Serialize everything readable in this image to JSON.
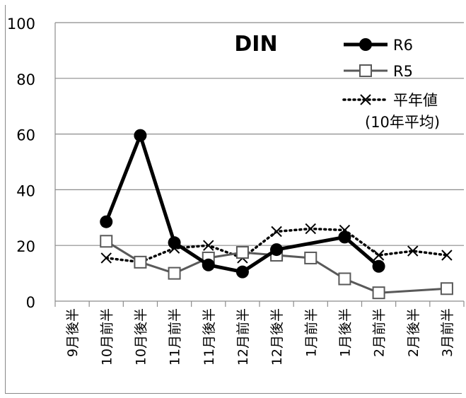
{
  "chart_data": {
    "type": "line",
    "title": "DIN",
    "xlabel": "",
    "ylabel": "",
    "ylim": [
      0,
      100
    ],
    "yticks": [
      "0",
      "20",
      "40",
      "60",
      "80",
      "100"
    ],
    "categories": [
      "9月後半",
      "10月前半",
      "10月後半",
      "11月前半",
      "11月後半",
      "12月前半",
      "12月後半",
      "1月前半",
      "1月後半",
      "2月前半",
      "2月後半",
      "3月前半"
    ],
    "grid": "horizontal",
    "legend_position": "top-right",
    "series": [
      {
        "name": "R6",
        "color": "#000000",
        "style": "solid-thick",
        "marker": "filled-circle",
        "values": [
          null,
          28.5,
          59.5,
          21,
          13,
          10.5,
          18.5,
          null,
          23,
          12.5,
          null,
          null
        ]
      },
      {
        "name": "R5",
        "color": "#595959",
        "style": "solid",
        "marker": "open-square",
        "values": [
          null,
          21.5,
          14,
          10,
          15.5,
          17.5,
          16.5,
          15.5,
          8,
          3,
          null,
          4.5
        ]
      },
      {
        "name": "平年値",
        "name_line2": "(10年平均)",
        "color": "#000000",
        "style": "dotted",
        "marker": "x",
        "values": [
          null,
          15.5,
          14,
          19,
          20,
          15.5,
          25,
          26,
          25.5,
          16.5,
          18,
          16.5
        ]
      }
    ]
  }
}
